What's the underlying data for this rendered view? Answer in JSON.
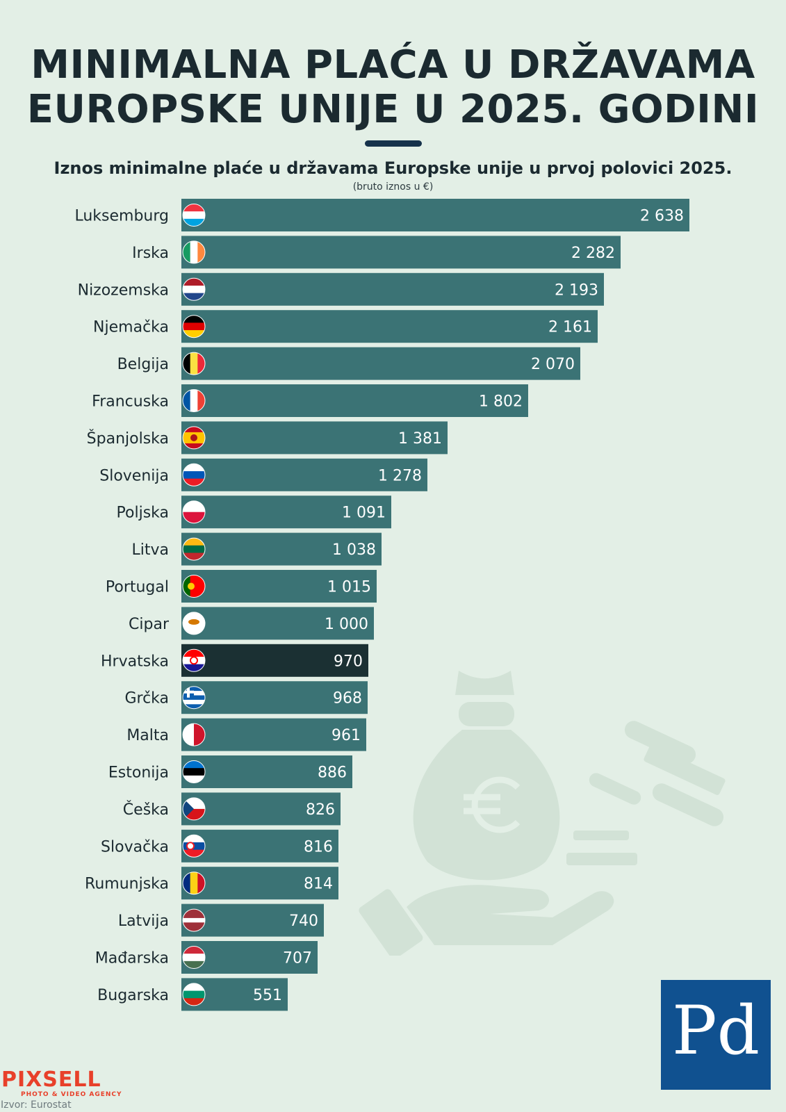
{
  "header": {
    "title_line1": "MINIMALNA PLAĆA U DRŽAVAMA",
    "title_line2": "EUROPSKE UNIJE U 2025. GODINI",
    "subtitle": "Iznos minimalne plaće u državama Europske unije u prvoj polovici 2025.",
    "unit": "(bruto iznos u €)"
  },
  "colors": {
    "bar": "#3b7375",
    "highlight_bar": "#1b3033",
    "title": "#1b2a30",
    "logo_bg": "#105190",
    "pixsell": "#e8402a"
  },
  "chart_data": {
    "type": "bar",
    "orientation": "horizontal",
    "title": "Iznos minimalne plaće u državama Europske unije u prvoj polovici 2025.",
    "unit": "(bruto iznos u €)",
    "highlight": "Hrvatska",
    "categories": [
      "Luksemburg",
      "Irska",
      "Nizozemska",
      "Njemačka",
      "Belgija",
      "Francuska",
      "Španjolska",
      "Slovenija",
      "Poljska",
      "Litva",
      "Portugal",
      "Cipar",
      "Hrvatska",
      "Grčka",
      "Malta",
      "Estonija",
      "Češka",
      "Slovačka",
      "Rumunjska",
      "Latvija",
      "Mađarska",
      "Bugarska"
    ],
    "values": [
      2638,
      2282,
      2193,
      2161,
      2070,
      1802,
      1381,
      1278,
      1091,
      1038,
      1015,
      1000,
      970,
      968,
      961,
      886,
      826,
      816,
      814,
      740,
      707,
      551
    ],
    "value_labels": [
      "2 638",
      "2 282",
      "2 193",
      "2 161",
      "2 070",
      "1 802",
      "1 381",
      "1 278",
      "1 091",
      "1 038",
      "1 015",
      "1 000",
      "970",
      "968",
      "961",
      "886",
      "826",
      "816",
      "814",
      "740",
      "707",
      "551"
    ],
    "flags": [
      "lu",
      "ie",
      "nl",
      "de",
      "be",
      "fr",
      "es",
      "si",
      "pl",
      "lt",
      "pt",
      "cy",
      "hr",
      "gr",
      "mt",
      "ee",
      "cz",
      "sk",
      "ro",
      "lv",
      "hu",
      "bg"
    ]
  },
  "branding": {
    "logo_text": "Pd",
    "agency_name": "PIXSELL",
    "agency_tagline": "PHOTO & VIDEO AGENCY",
    "source": "Izvor: Eurostat"
  }
}
